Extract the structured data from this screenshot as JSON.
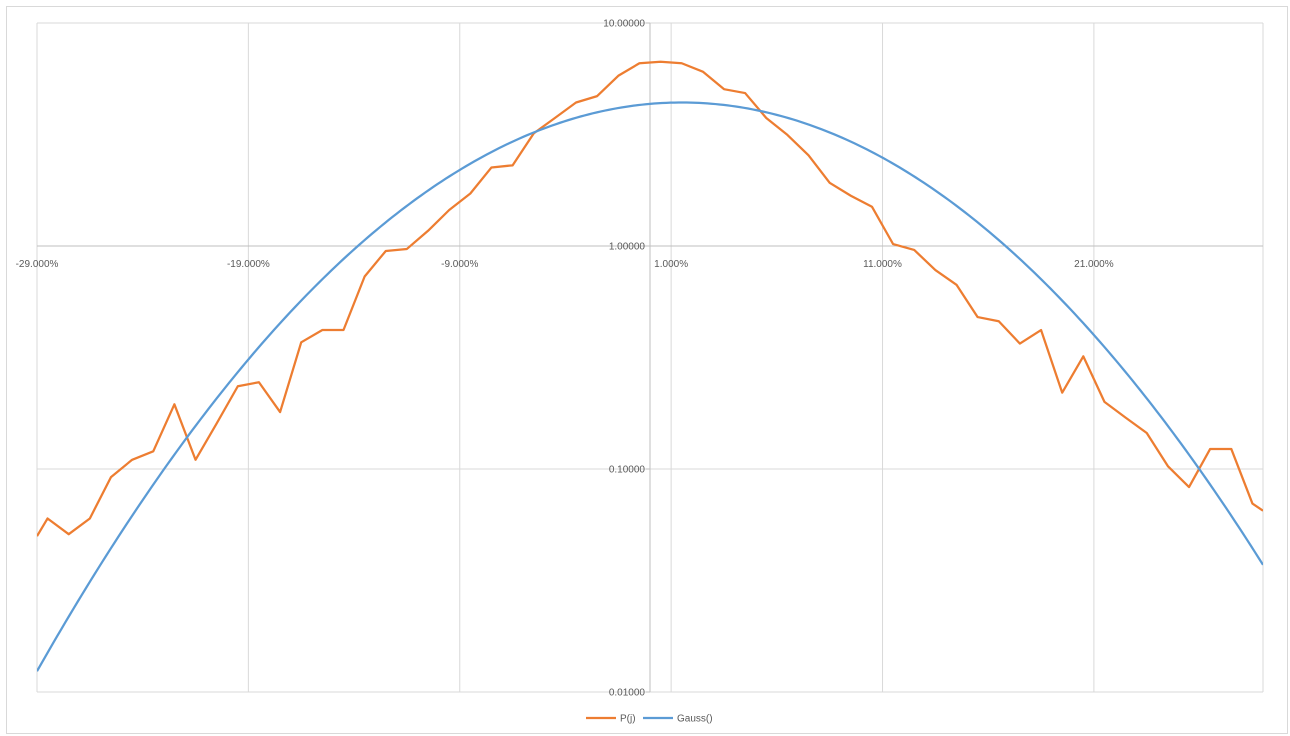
{
  "chart_data": {
    "type": "line",
    "title": "",
    "xlabel": "",
    "ylabel": "",
    "x_scale": "linear",
    "y_scale": "log",
    "xlim": [
      -29,
      29
    ],
    "ylim": [
      0.01,
      10
    ],
    "x_ticks": [
      -29,
      -19,
      -9,
      1,
      11,
      21
    ],
    "x_tick_labels": [
      "-29.000%",
      "-19.000%",
      "-9.000%",
      "1.000%",
      "11.000%",
      "21.000%"
    ],
    "y_ticks": [
      0.01,
      0.1,
      1,
      10
    ],
    "y_tick_labels": [
      "0.01000",
      "0.10000",
      "1.00000",
      "10.00000"
    ],
    "grid": true,
    "legend_position": "bottom",
    "colors": {
      "P(j)": "#ED7D31",
      "Gauss()": "#5B9BD5",
      "grid": "#d9d9d9",
      "axis": "#bfbfbf"
    },
    "series": [
      {
        "name": "P(j)",
        "x": [
          -29,
          -28.5,
          -27.5,
          -26.5,
          -25.5,
          -24.5,
          -23.5,
          -22.5,
          -21.5,
          -20.5,
          -19.5,
          -18.5,
          -17.5,
          -16.5,
          -15.5,
          -14.5,
          -13.5,
          -12.5,
          -11.5,
          -10.5,
          -9.5,
          -8.5,
          -7.5,
          -6.5,
          -5.5,
          -4.5,
          -3.5,
          -2.5,
          -1.5,
          -0.5,
          0.5,
          1.5,
          2.5,
          3.5,
          4.5,
          5.5,
          6.5,
          7.5,
          8.5,
          9.5,
          10.5,
          11.5,
          12.5,
          13.5,
          14.5,
          15.5,
          16.5,
          17.5,
          18.5,
          19.5,
          20.5,
          21.5,
          22.5,
          23.5,
          24.5,
          25.5,
          26.5,
          27.5,
          28.5,
          29
        ],
        "y": [
          0.05,
          0.06,
          0.051,
          0.06,
          0.092,
          0.11,
          0.12,
          0.195,
          0.11,
          0.16,
          0.235,
          0.245,
          0.18,
          0.37,
          0.42,
          0.42,
          0.73,
          0.95,
          0.97,
          1.17,
          1.45,
          1.72,
          2.25,
          2.3,
          3.2,
          3.75,
          4.4,
          4.7,
          5.8,
          6.6,
          6.7,
          6.6,
          6.05,
          5.05,
          4.85,
          3.75,
          3.15,
          2.55,
          1.92,
          1.68,
          1.5,
          1.02,
          0.96,
          0.78,
          0.67,
          0.48,
          0.46,
          0.365,
          0.42,
          0.22,
          0.32,
          0.2,
          0.17,
          0.145,
          0.103,
          0.083,
          0.123,
          0.123,
          0.07,
          0.065
        ]
      },
      {
        "name": "Gauss()",
        "mu": 1.5,
        "sigma": 8.9,
        "peak": 4.4,
        "x_range": [
          -29,
          29
        ]
      }
    ]
  }
}
